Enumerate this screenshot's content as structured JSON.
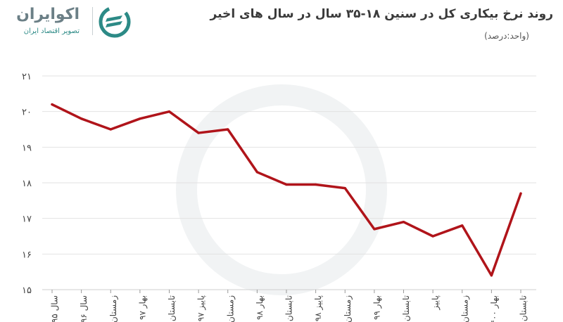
{
  "brand": {
    "name": "اکوایران",
    "tagline": "تصویر اقتصاد ایران",
    "colors": {
      "teal": "#2c8a86",
      "gray": "#6b7f86"
    }
  },
  "chart_data": {
    "type": "line",
    "title": "روند نرخ بیکاری کل در سنین ۱۸-۳۵ سال در سال های اخیر",
    "unit_label": "(واحد:درصد)",
    "categories": [
      "سال ۹۵",
      "سال ۹۶",
      "زمستان",
      "بهار ۹۷",
      "تابستان",
      "پاییز ۹۷",
      "زمستان",
      "بهار ۹۸",
      "تابستان",
      "پاییز ۹۸",
      "زمستان",
      "بهار ۹۹",
      "تابستان",
      "پاییز",
      "زمستان",
      "بهار ۱۴۰۰",
      "تابستان"
    ],
    "series": [
      {
        "values": [
          20.2,
          19.8,
          19.5,
          19.8,
          20.0,
          19.4,
          19.5,
          18.3,
          17.95,
          17.95,
          17.85,
          16.7,
          16.9,
          16.5,
          16.8,
          15.4,
          17.7
        ],
        "color": "#b0141a"
      }
    ],
    "yticks": [
      "۱۵",
      "۱۶",
      "۱۷",
      "۱۸",
      "۱۹",
      "۲۰",
      "۲۱"
    ],
    "ylim": [
      15,
      21
    ],
    "grid": true
  }
}
